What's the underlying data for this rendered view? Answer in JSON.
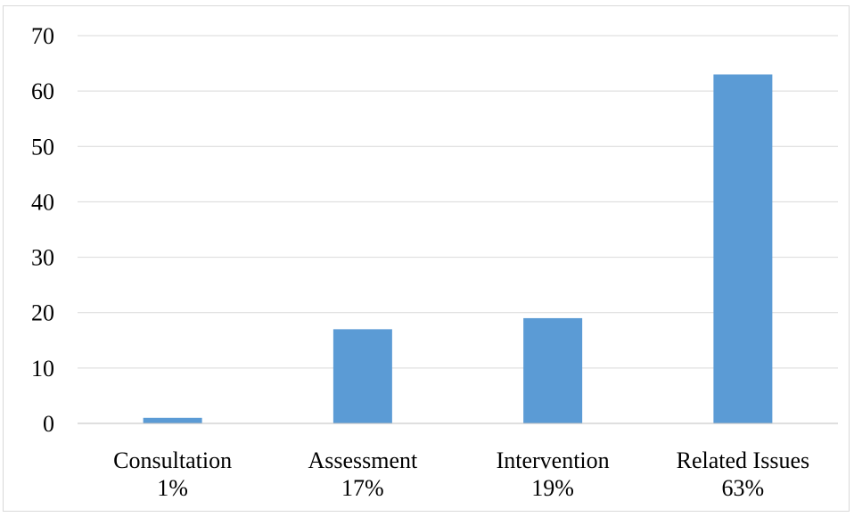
{
  "chart_data": {
    "type": "bar",
    "categories": [
      [
        "Consultation",
        "1%"
      ],
      [
        "Assessment",
        "17%"
      ],
      [
        "Intervention",
        "19%"
      ],
      [
        "Related Issues",
        "63%"
      ]
    ],
    "values": [
      1,
      17,
      19,
      63
    ],
    "title": "",
    "xlabel": "",
    "ylabel": "",
    "ylim": [
      0,
      70
    ],
    "yticks": [
      0,
      10,
      20,
      30,
      40,
      50,
      60,
      70
    ],
    "grid": true,
    "legend": "none",
    "colors": {
      "bar": "#5b9bd5",
      "grid": "#d9d9d9",
      "axis": "#bfbfbf"
    }
  }
}
